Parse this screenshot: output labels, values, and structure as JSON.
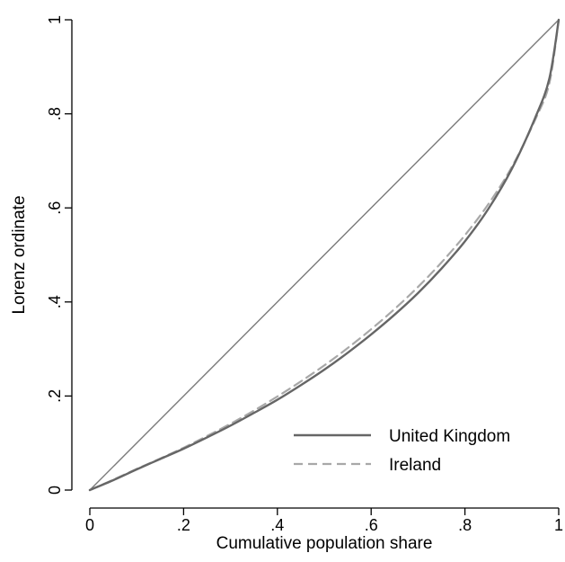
{
  "chart_data": {
    "type": "line",
    "xlabel": "Cumulative population share",
    "ylabel": "Lorenz ordinate",
    "xlim": [
      0,
      1
    ],
    "ylim": [
      0,
      1
    ],
    "x_ticks": [
      "0",
      ".2",
      ".4",
      ".6",
      ".8",
      "1"
    ],
    "y_ticks": [
      "0",
      ".2",
      ".4",
      ".6",
      ".8",
      "1"
    ],
    "grid": false,
    "legend_position": "bottom-right",
    "reference_line": {
      "x": [
        0,
        1
      ],
      "y": [
        0,
        1
      ],
      "color": "#7a7a7a"
    },
    "series": [
      {
        "name": "United Kingdom",
        "style": "solid",
        "color": "#666666",
        "x": [
          0,
          0.05,
          0.1,
          0.15,
          0.2,
          0.25,
          0.3,
          0.35,
          0.4,
          0.45,
          0.5,
          0.55,
          0.6,
          0.65,
          0.7,
          0.75,
          0.8,
          0.85,
          0.9,
          0.95,
          0.98,
          1.0
        ],
        "y": [
          0,
          0.021,
          0.044,
          0.066,
          0.088,
          0.112,
          0.137,
          0.164,
          0.192,
          0.223,
          0.256,
          0.292,
          0.331,
          0.373,
          0.419,
          0.471,
          0.529,
          0.598,
          0.683,
          0.792,
          0.875,
          1.0
        ]
      },
      {
        "name": "Ireland",
        "style": "dashed",
        "color": "#a8a8a8",
        "x": [
          0,
          0.05,
          0.1,
          0.15,
          0.2,
          0.25,
          0.3,
          0.35,
          0.4,
          0.45,
          0.5,
          0.55,
          0.6,
          0.65,
          0.7,
          0.75,
          0.8,
          0.85,
          0.9,
          0.95,
          0.98,
          1.0
        ],
        "y": [
          0,
          0.022,
          0.045,
          0.067,
          0.09,
          0.115,
          0.141,
          0.169,
          0.199,
          0.231,
          0.265,
          0.302,
          0.342,
          0.385,
          0.432,
          0.484,
          0.542,
          0.608,
          0.687,
          0.788,
          0.865,
          1.0
        ]
      }
    ]
  }
}
